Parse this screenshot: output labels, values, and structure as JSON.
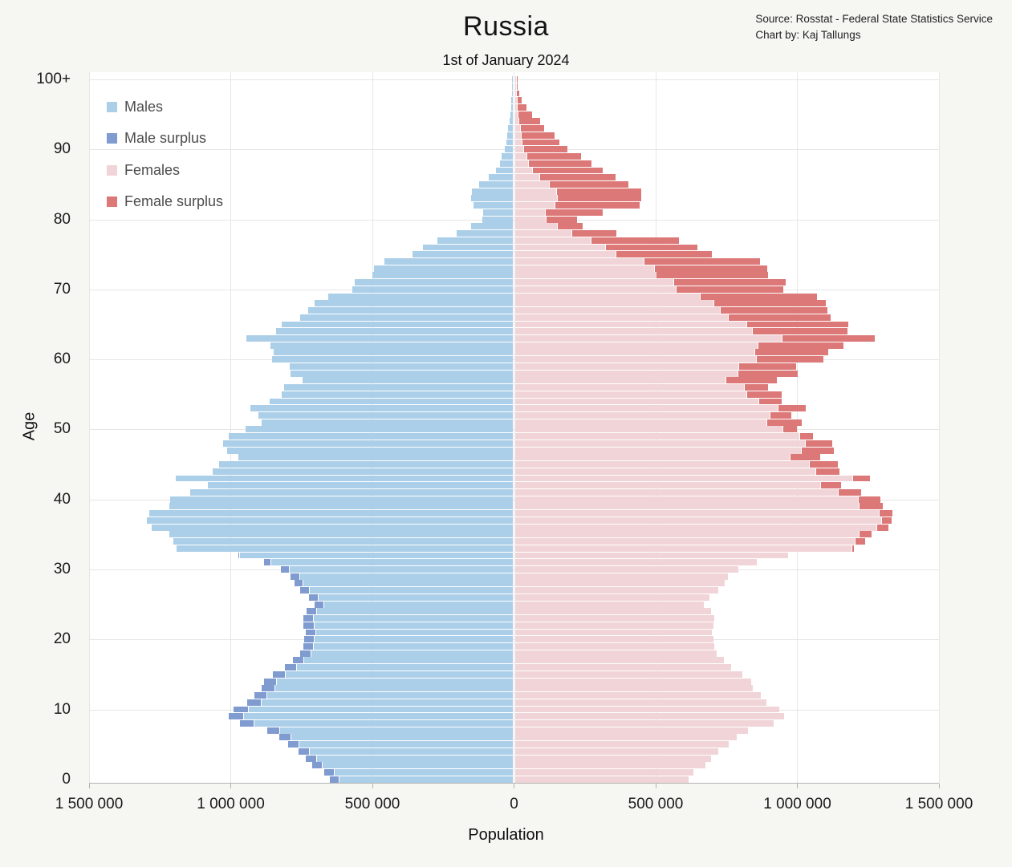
{
  "title": "Russia",
  "subtitle": "1st of January 2024",
  "source": {
    "line1": "Source: Rosstat - Federal State Statistics Service",
    "line2": "Chart by: Kaj Tallungs"
  },
  "axes": {
    "x_label": "Population",
    "y_label": "Age",
    "x_tick_labels": [
      "1 500 000",
      "1 000 000",
      "500 000",
      "0",
      "500 000",
      "1 000 000",
      "1 500 000"
    ],
    "y_tick_labels": [
      "0",
      "10",
      "20",
      "30",
      "40",
      "50",
      "60",
      "70",
      "80",
      "90",
      "100+"
    ]
  },
  "colors": {
    "males": "#abcfe8",
    "male_surplus": "#7f9bd0",
    "females": "#f0d4d7",
    "female_surplus": "#dc7877",
    "grid": "#e6e6e6",
    "plot_background": "#ffffff",
    "page_background": "#f6f6f3",
    "axis_line": "#b3b3b3"
  },
  "legend": {
    "items": [
      {
        "label": "Males",
        "color_key": "males"
      },
      {
        "label": "Male surplus",
        "color_key": "male_surplus"
      },
      {
        "label": "Females",
        "color_key": "females"
      },
      {
        "label": "Female surplus",
        "color_key": "female_surplus"
      }
    ]
  },
  "chart_data": {
    "type": "bar",
    "variant": "population-pyramid",
    "title": "Russia",
    "subtitle": "1st of January 2024",
    "xlabel": "Population",
    "ylabel": "Age",
    "x_range_persons": [
      -1500000,
      1500000
    ],
    "x_gridline_step_persons": 500000,
    "age_range": [
      0,
      100
    ],
    "top_age_label": "100+",
    "unit": "thousands of persons per single year of age",
    "note": "males drawn left of center, females right; surplus = excess of one sex over the other at that age, drawn as darker tip segment",
    "males_thousands": [
      646,
      666,
      711,
      731,
      759,
      796,
      827,
      867,
      966,
      1003,
      986,
      938,
      915,
      888,
      880,
      848,
      806,
      779,
      752,
      742,
      738,
      733,
      740,
      740,
      730,
      700,
      720,
      752,
      772,
      785,
      820,
      880,
      971,
      1187,
      1199,
      1214,
      1275,
      1292,
      1284,
      1213,
      1210,
      1139,
      1077,
      1190,
      1060,
      1037,
      969,
      1011,
      1023,
      1004,
      945,
      888,
      900,
      927,
      859,
      817,
      810,
      743,
      787,
      788,
      850,
      845,
      856,
      943,
      838,
      817,
      751,
      725,
      702,
      652,
      569,
      560,
      498,
      491,
      456,
      355,
      319,
      267,
      200,
      150,
      110,
      105,
      140,
      150,
      145,
      120,
      85,
      60,
      48,
      41,
      29,
      25,
      21,
      17,
      13,
      10,
      8,
      6,
      4,
      3,
      3
    ],
    "females_thousands": [
      612,
      631,
      674,
      693,
      719,
      754,
      784,
      822,
      915,
      950,
      934,
      889,
      867,
      841,
      834,
      804,
      764,
      738,
      713,
      703,
      700,
      695,
      702,
      703,
      694,
      667,
      686,
      717,
      740,
      753,
      790,
      855,
      965,
      1198,
      1236,
      1260,
      1320,
      1331,
      1334,
      1298,
      1289,
      1222,
      1153,
      1253,
      1146,
      1139,
      1079,
      1125,
      1121,
      1053,
      996,
      1012,
      977,
      1028,
      941,
      943,
      894,
      924,
      998,
      994,
      1088,
      1107,
      1161,
      1270,
      1173,
      1176,
      1116,
      1104,
      1097,
      1066,
      949,
      955,
      894,
      892,
      866,
      696,
      644,
      578,
      357,
      238,
      220,
      310,
      440,
      447,
      445,
      400,
      355,
      310,
      270,
      235,
      186,
      158,
      141,
      103,
      90,
      61,
      40,
      25,
      16,
      11,
      8
    ]
  }
}
